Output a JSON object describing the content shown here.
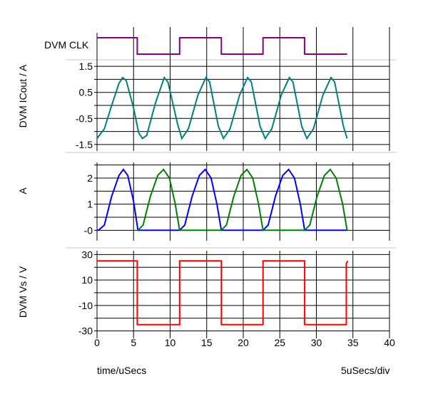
{
  "chart_data": {
    "type": "line",
    "x_unit_label": "time/uSecs",
    "scale_label": "5uSecs/div",
    "xlim": [
      0,
      40
    ],
    "x_ticks": [
      0,
      5,
      10,
      15,
      20,
      25,
      30,
      35,
      40
    ],
    "grid": true,
    "panels": [
      {
        "id": "clk",
        "ylabel": "DVM CLK",
        "type": "digital",
        "series": [
          {
            "color": "#800080",
            "points": [
              [
                0,
                1
              ],
              [
                5.5,
                1
              ],
              [
                5.5,
                0
              ],
              [
                11.3,
                0
              ],
              [
                11.3,
                1
              ],
              [
                17,
                1
              ],
              [
                17,
                0
              ],
              [
                22.7,
                0
              ],
              [
                22.7,
                1
              ],
              [
                28.4,
                1
              ],
              [
                28.4,
                0
              ],
              [
                34.2,
                0
              ]
            ]
          }
        ]
      },
      {
        "id": "icout",
        "ylabel": "DVM ICout / A",
        "ylim": [
          -1.75,
          1.75
        ],
        "y_ticks": [
          1.5,
          0.5,
          -0.5,
          -1.5
        ],
        "y_tick_labels": [
          "1.5",
          "0.5",
          "-0.5",
          "-1.5"
        ],
        "series": [
          {
            "color": "#008080",
            "points": [
              [
                0,
                -1.27
              ],
              [
                1,
                -0.9
              ],
              [
                2,
                0
              ],
              [
                3,
                0.85
              ],
              [
                3.5,
                1.07
              ],
              [
                4,
                0.95
              ],
              [
                5,
                -0.1
              ],
              [
                5.7,
                -1.05
              ],
              [
                6.2,
                -1.27
              ],
              [
                6.8,
                -1.15
              ],
              [
                8,
                0.1
              ],
              [
                9.2,
                1.07
              ],
              [
                9.7,
                0.9
              ],
              [
                11,
                -0.7
              ],
              [
                11.6,
                -1.27
              ],
              [
                12.5,
                -0.9
              ],
              [
                13.8,
                0.4
              ],
              [
                14.9,
                1.07
              ],
              [
                15.4,
                0.9
              ],
              [
                16.6,
                -0.8
              ],
              [
                17.3,
                -1.27
              ],
              [
                18.2,
                -0.9
              ],
              [
                19.5,
                0.4
              ],
              [
                20.6,
                1.07
              ],
              [
                21.1,
                0.9
              ],
              [
                22.3,
                -0.8
              ],
              [
                23,
                -1.27
              ],
              [
                23.9,
                -0.9
              ],
              [
                25.2,
                0.4
              ],
              [
                26.3,
                1.07
              ],
              [
                26.8,
                0.9
              ],
              [
                28,
                -0.8
              ],
              [
                28.7,
                -1.27
              ],
              [
                29.6,
                -0.9
              ],
              [
                30.9,
                0.4
              ],
              [
                32,
                1.07
              ],
              [
                32.5,
                0.9
              ],
              [
                33.7,
                -0.8
              ],
              [
                34.2,
                -1.27
              ]
            ]
          }
        ]
      },
      {
        "id": "iq",
        "ylabel": "A",
        "ylim": [
          -0.4,
          2.6
        ],
        "y_ticks": [
          2,
          1,
          0
        ],
        "y_tick_labels": [
          "2",
          "1",
          "-0"
        ],
        "series": [
          {
            "color": "#0000ff",
            "points": [
              [
                0,
                0
              ],
              [
                0.2,
                0
              ],
              [
                1,
                0.2
              ],
              [
                2,
                1.3
              ],
              [
                3,
                2.1
              ],
              [
                3.6,
                2.33
              ],
              [
                4.2,
                2.1
              ],
              [
                5,
                1.1
              ],
              [
                5.6,
                0
              ],
              [
                11.3,
                0
              ],
              [
                12,
                0.2
              ],
              [
                13,
                1.3
              ],
              [
                14,
                2.1
              ],
              [
                14.8,
                2.33
              ],
              [
                15.6,
                2
              ],
              [
                16.4,
                1
              ],
              [
                17,
                0
              ],
              [
                22.7,
                0
              ],
              [
                23.4,
                0.2
              ],
              [
                24.4,
                1.3
              ],
              [
                25.4,
                2.1
              ],
              [
                26.2,
                2.33
              ],
              [
                27,
                2
              ],
              [
                27.8,
                1
              ],
              [
                28.4,
                0
              ],
              [
                34.2,
                0
              ]
            ]
          },
          {
            "color": "#008000",
            "points": [
              [
                5.6,
                0
              ],
              [
                6.3,
                0.2
              ],
              [
                7.3,
                1.3
              ],
              [
                8.3,
                2.1
              ],
              [
                9.1,
                2.33
              ],
              [
                9.9,
                2
              ],
              [
                10.7,
                1
              ],
              [
                11.3,
                0
              ],
              [
                17,
                0
              ],
              [
                17.7,
                0.2
              ],
              [
                18.7,
                1.3
              ],
              [
                19.7,
                2.1
              ],
              [
                20.5,
                2.33
              ],
              [
                21.3,
                2
              ],
              [
                22.1,
                1
              ],
              [
                22.7,
                0
              ],
              [
                28.4,
                0
              ],
              [
                29.1,
                0.2
              ],
              [
                30.1,
                1.3
              ],
              [
                31.1,
                2.1
              ],
              [
                31.9,
                2.33
              ],
              [
                32.7,
                2
              ],
              [
                33.6,
                1
              ],
              [
                34.2,
                0
              ]
            ]
          }
        ]
      },
      {
        "id": "vs",
        "ylabel": "DVM Vs / V",
        "ylim": [
          -33,
          33
        ],
        "y_ticks": [
          30,
          10,
          -10,
          -30
        ],
        "y_tick_labels": [
          "30",
          "10",
          "-10",
          "-30"
        ],
        "series": [
          {
            "color": "#ff0000",
            "points": [
              [
                0,
                25
              ],
              [
                5.5,
                25
              ],
              [
                5.5,
                -25
              ],
              [
                11.3,
                -25
              ],
              [
                11.3,
                25
              ],
              [
                17,
                25
              ],
              [
                17,
                -25
              ],
              [
                22.7,
                -25
              ],
              [
                22.7,
                25
              ],
              [
                28.4,
                25
              ],
              [
                28.4,
                -25
              ],
              [
                34.1,
                -25
              ],
              [
                34.1,
                23
              ],
              [
                34.3,
                25
              ]
            ]
          }
        ]
      }
    ]
  }
}
